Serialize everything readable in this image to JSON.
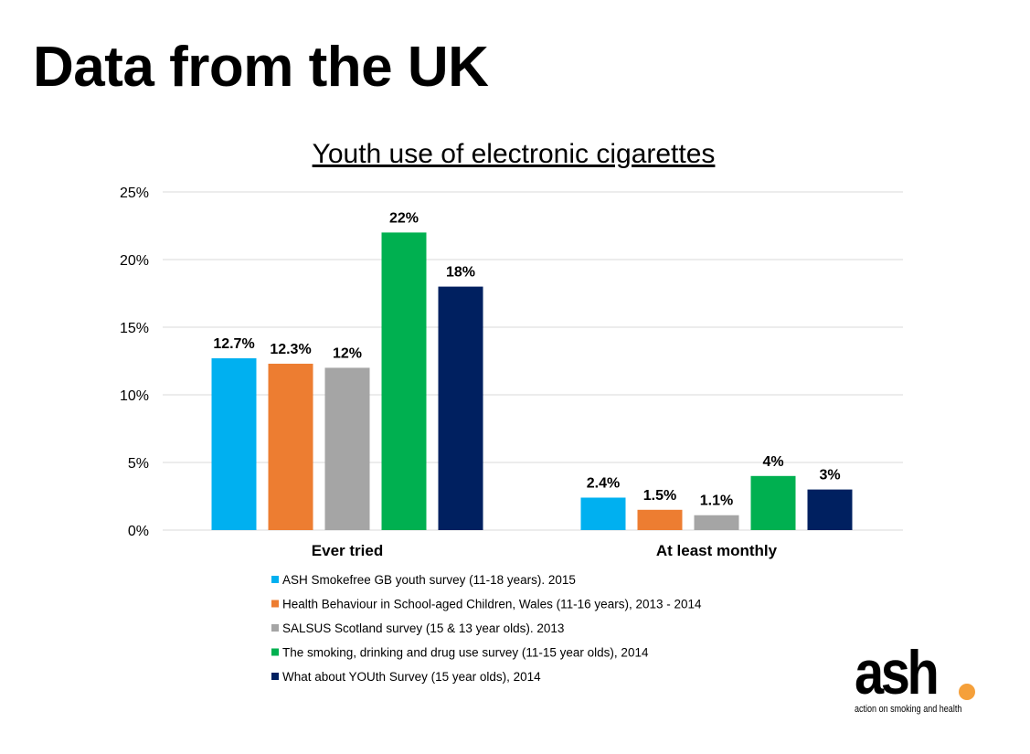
{
  "slide_title": "Data from the UK",
  "logo": {
    "text": "ash",
    "tagline": "action on smoking and health",
    "dot_color": "#f5a03a"
  },
  "chart_data": {
    "type": "bar",
    "title": "Youth use of electronic cigarettes",
    "categories": [
      "Ever tried",
      "At least monthly"
    ],
    "ylim": [
      0,
      25
    ],
    "yticks": [
      0,
      5,
      10,
      15,
      20,
      25
    ],
    "ytick_labels": [
      "0%",
      "5%",
      "10%",
      "15%",
      "20%",
      "25%"
    ],
    "grid": true,
    "legend_position": "bottom",
    "series": [
      {
        "name": "ASH Smokefree GB youth survey (11-18 years). 2015",
        "color": "#00b0f0",
        "values": [
          12.7,
          2.4
        ],
        "labels": [
          "12.7%",
          "2.4%"
        ]
      },
      {
        "name": "Health Behaviour in School-aged Children, Wales (11-16 years), 2013 - 2014",
        "color": "#ed7d31",
        "values": [
          12.3,
          1.5
        ],
        "labels": [
          "12.3%",
          "1.5%"
        ]
      },
      {
        "name": "SALSUS Scotland survey  (15 & 13 year olds). 2013",
        "color": "#a5a5a5",
        "values": [
          12,
          1.1
        ],
        "labels": [
          "12%",
          "1.1%"
        ]
      },
      {
        "name": "The smoking, drinking and drug use survey (11-15 year olds), 2014",
        "color": "#00b050",
        "values": [
          22,
          4
        ],
        "labels": [
          "22%",
          "4%"
        ]
      },
      {
        "name": "What about YOUth Survey (15 year olds), 2014",
        "color": "#002060",
        "values": [
          18,
          3
        ],
        "labels": [
          "18%",
          "3%"
        ]
      }
    ]
  }
}
